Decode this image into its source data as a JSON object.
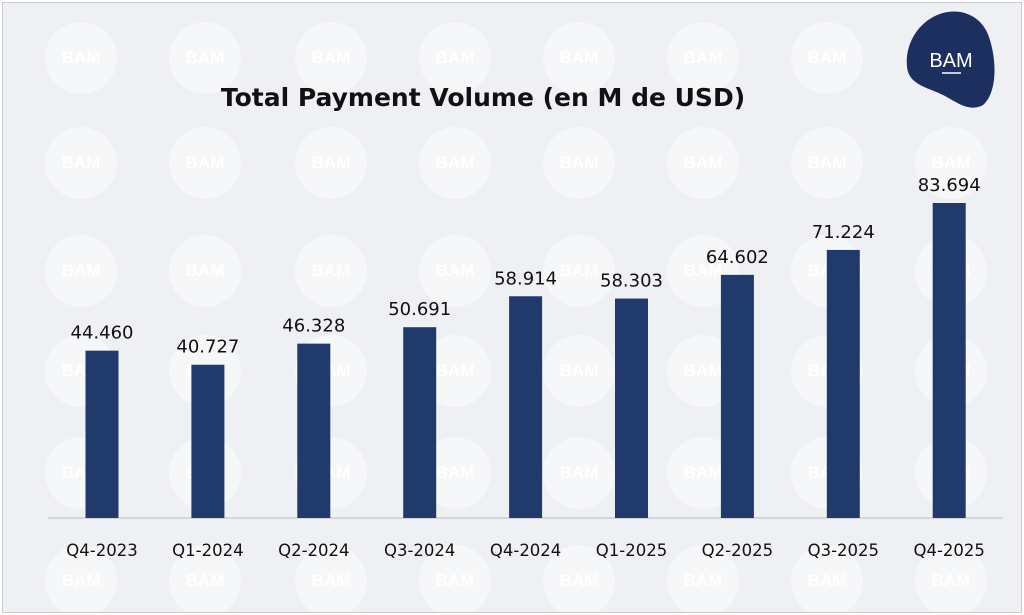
{
  "brand": {
    "logo_text": "BAM",
    "watermark_text": "BAM",
    "bar_color": "#1f3a6b",
    "logo_color": "#1c2f5e"
  },
  "chart_data": {
    "type": "bar",
    "title": "Total Payment Volume (en M de USD)",
    "xlabel": "",
    "ylabel": "",
    "categories": [
      "Q4-2023",
      "Q1-2024",
      "Q2-2024",
      "Q3-2024",
      "Q4-2024",
      "Q1-2025",
      "Q2-2025",
      "Q3-2025",
      "Q4-2025"
    ],
    "values": [
      44460,
      40727,
      46328,
      50691,
      58914,
      58303,
      64602,
      71224,
      83694
    ],
    "value_labels": [
      "44.460",
      "40.727",
      "46.328",
      "50.691",
      "58.914",
      "58.303",
      "64.602",
      "71.224",
      "83.694"
    ],
    "ylim": [
      0,
      90000
    ],
    "grid": false,
    "legend": "none"
  }
}
